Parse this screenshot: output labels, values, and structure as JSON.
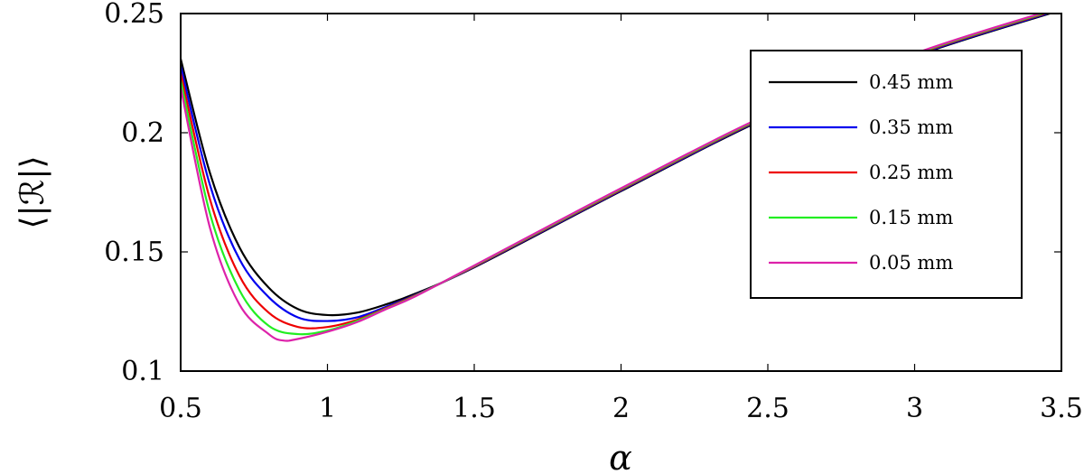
{
  "chart_data": {
    "type": "line",
    "title": "",
    "xlabel": "α",
    "ylabel": "⟨|ℛ|⟩",
    "xlim": [
      0.5,
      3.5
    ],
    "ylim": [
      0.1,
      0.25
    ],
    "xticks": [
      0.5,
      1,
      1.5,
      2,
      2.5,
      3,
      3.5
    ],
    "yticks": [
      0.1,
      0.15,
      0.2,
      0.25
    ],
    "xtick_labels": [
      "0.5",
      "1",
      "1.5",
      "2",
      "2.5",
      "3",
      "3.5"
    ],
    "ytick_labels": [
      "0.1",
      "0.15",
      "0.2",
      "0.25"
    ],
    "grid": false,
    "legend_position": "top-right",
    "series": [
      {
        "name": "0.45 mm",
        "color": "#000000",
        "x": [
          0.5,
          0.6,
          0.7,
          0.8,
          0.9,
          1.0,
          1.1,
          1.2,
          1.3,
          1.5,
          2.0,
          2.5,
          3.0,
          3.5
        ],
        "y": [
          0.231,
          0.183,
          0.152,
          0.135,
          0.126,
          0.1235,
          0.1245,
          0.128,
          0.1325,
          0.1435,
          0.1755,
          0.2065,
          0.232,
          0.2515
        ]
      },
      {
        "name": "0.35 mm",
        "color": "#0000ee",
        "x": [
          0.5,
          0.6,
          0.7,
          0.8,
          0.9,
          1.0,
          1.1,
          1.2,
          1.3,
          1.5,
          2.0,
          2.5,
          3.0,
          3.5
        ],
        "y": [
          0.228,
          0.178,
          0.147,
          0.131,
          0.1225,
          0.121,
          0.1225,
          0.127,
          0.132,
          0.1437,
          0.1758,
          0.2068,
          0.2323,
          0.2518
        ]
      },
      {
        "name": "0.25 mm",
        "color": "#ee0000",
        "x": [
          0.5,
          0.6,
          0.7,
          0.8,
          0.9,
          1.0,
          1.1,
          1.2,
          1.3,
          1.5,
          2.0,
          2.5,
          3.0,
          3.5
        ],
        "y": [
          0.225,
          0.172,
          0.14,
          0.1245,
          0.1185,
          0.1185,
          0.1215,
          0.1265,
          0.1318,
          0.1439,
          0.1761,
          0.2071,
          0.2326,
          0.2521
        ]
      },
      {
        "name": "0.15 mm",
        "color": "#22ee22",
        "x": [
          0.5,
          0.6,
          0.7,
          0.8,
          0.9,
          1.0,
          1.1,
          1.2,
          1.3,
          1.5,
          2.0,
          2.5,
          3.0,
          3.5
        ],
        "y": [
          0.222,
          0.166,
          0.134,
          0.119,
          0.1155,
          0.117,
          0.121,
          0.1262,
          0.1316,
          0.1441,
          0.1764,
          0.2074,
          0.2329,
          0.2524
        ]
      },
      {
        "name": "0.05 mm",
        "color": "#dd22aa",
        "x": [
          0.5,
          0.6,
          0.7,
          0.8,
          0.85,
          0.9,
          1.0,
          1.1,
          1.2,
          1.3,
          1.5,
          2.0,
          2.5,
          3.0,
          3.5
        ],
        "y": [
          0.219,
          0.16,
          0.128,
          0.1155,
          0.1128,
          0.1135,
          0.1165,
          0.1205,
          0.126,
          0.1314,
          0.1443,
          0.1767,
          0.2077,
          0.2332,
          0.2527
        ]
      }
    ]
  }
}
